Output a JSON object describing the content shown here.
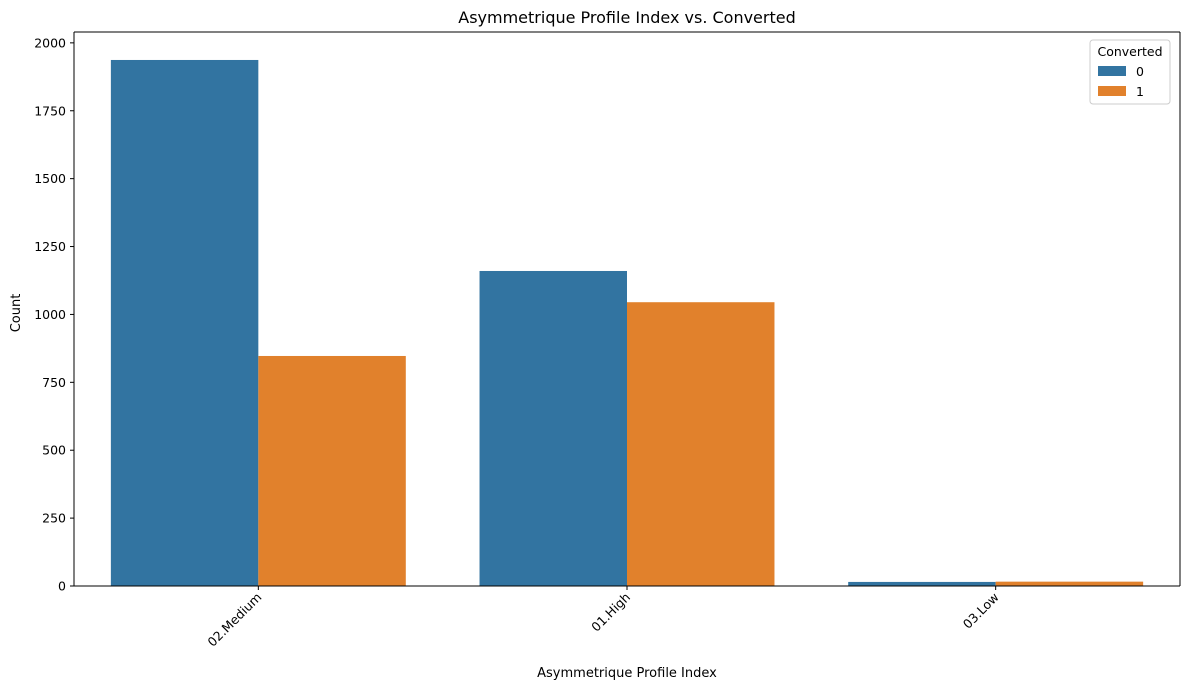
{
  "chart_data": {
    "type": "bar",
    "title": "Asymmetrique Profile Index vs. Converted",
    "xlabel": "Asymmetrique Profile Index",
    "ylabel": "Count",
    "categories": [
      "02.Medium",
      "01.High",
      "03.Low"
    ],
    "series": [
      {
        "name": "0",
        "color": "#3274a1",
        "values": [
          1937,
          1160,
          15
        ]
      },
      {
        "name": "1",
        "color": "#e1812c",
        "values": [
          847,
          1045,
          16
        ]
      }
    ],
    "ylim": [
      0,
      2040
    ],
    "yticks": [
      0,
      250,
      500,
      750,
      1000,
      1250,
      1500,
      1750,
      2000
    ],
    "legend": {
      "title": "Converted",
      "position": "top-right"
    },
    "grid": false
  }
}
